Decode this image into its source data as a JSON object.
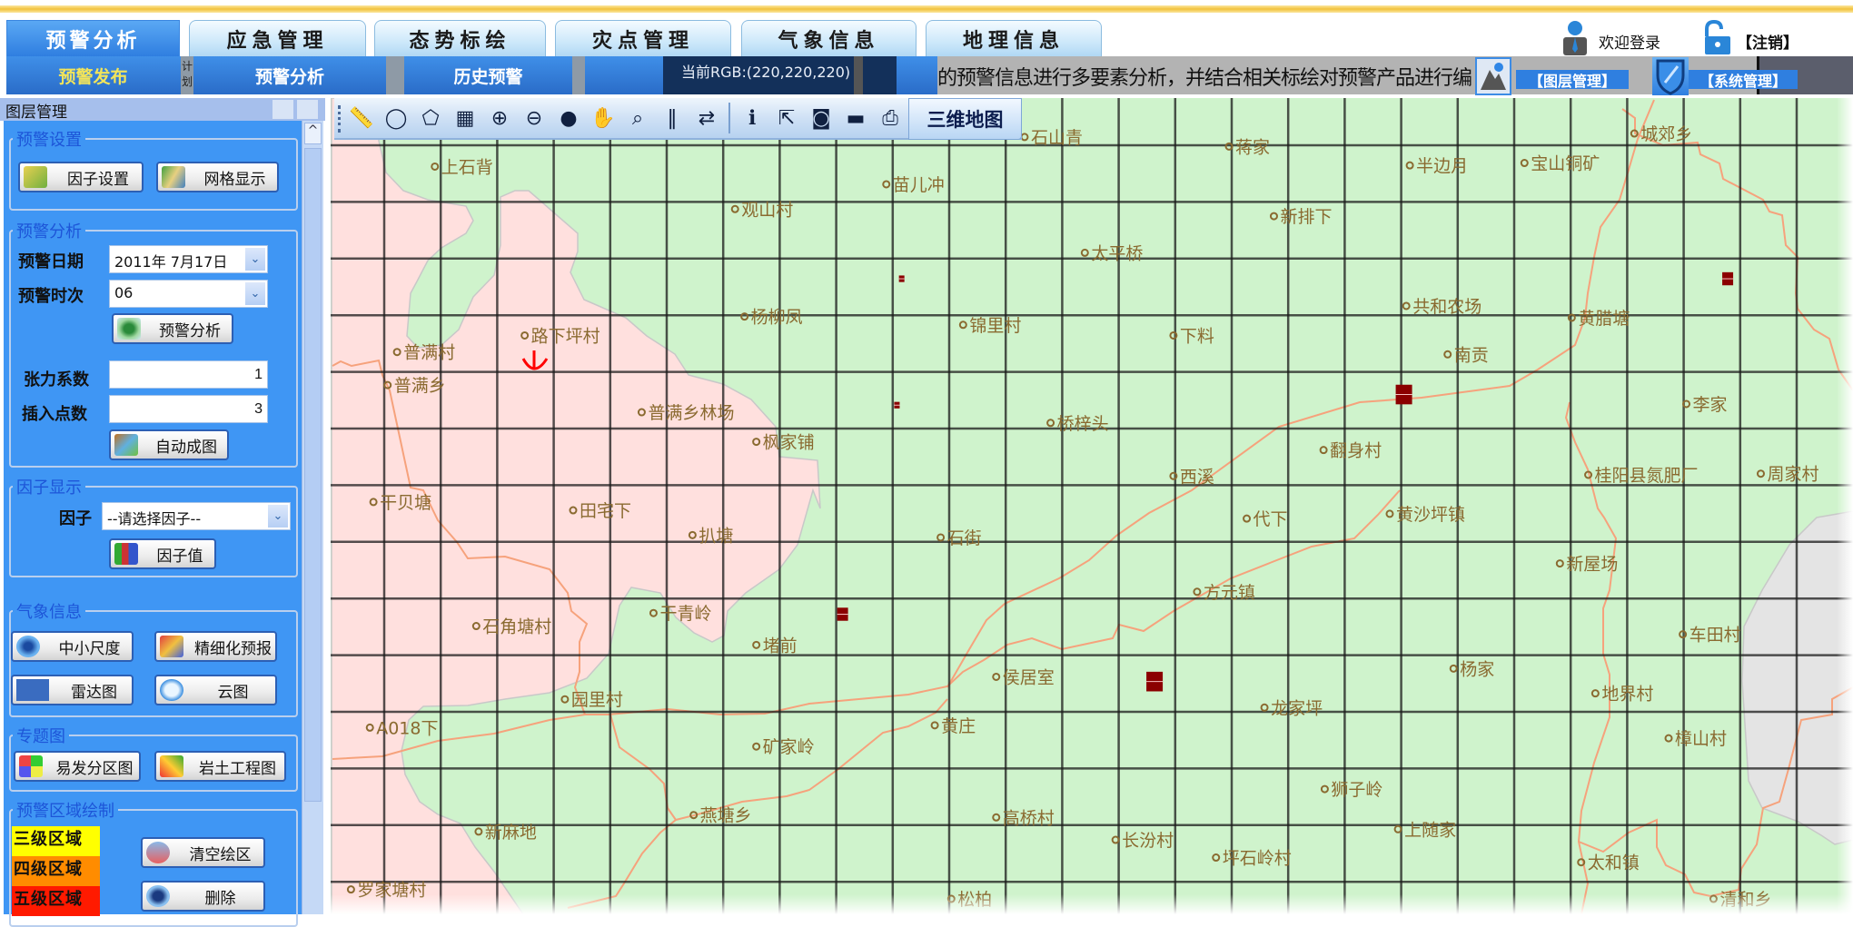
{
  "header": {
    "main_tabs": [
      "预警分析",
      "应急管理",
      "态势标绘",
      "灾点管理",
      "气象信息",
      "地理信息"
    ],
    "active_tab": 0,
    "sub_tabs": {
      "publish": "预警发布",
      "plan": "计划",
      "analysis": "预警分析",
      "history": "历史预警"
    },
    "rgb_readout": "当前RGB:(220,220,220)",
    "marquee": "的预警信息进行多要素分析，并结合相关标绘对预警产品进行编",
    "layer_mgmt": "【图层管理】",
    "sys_mgmt": "【系统管理】",
    "welcome": "欢迎登录",
    "logout": "【注销】"
  },
  "sidebar": {
    "title": "图层管理",
    "settings": {
      "legend": "预警设置",
      "factor_settings": "因子设置",
      "grid_display": "网格显示"
    },
    "analysis": {
      "legend": "预警分析",
      "date_label": "预警日期",
      "date_value": "2011年 7月17日",
      "time_label": "预警时次",
      "time_value": "06",
      "run_button": "预警分析",
      "tension_label": "张力系数",
      "tension_value": "1",
      "interp_label": "插入点数",
      "interp_value": "3",
      "auto_map": "自动成图"
    },
    "factor": {
      "legend": "因子显示",
      "label": "因子",
      "select_value": "--请选择因子--",
      "value_button": "因子值"
    },
    "weather": {
      "legend": "气象信息",
      "mesoscale": "中小尺度",
      "fine_forecast": "精细化预报",
      "radar": "雷达图",
      "cloud": "云图"
    },
    "thematic": {
      "legend": "专题图",
      "susceptibility": "易发分区图",
      "geotech": "岩土工程图"
    },
    "drawing": {
      "legend": "预警区域绘制",
      "levels": [
        {
          "label": "三级区域",
          "color": "#ffff00"
        },
        {
          "label": "四级区域",
          "color": "#ff8c00"
        },
        {
          "label": "五级区域",
          "color": "#ff1a00"
        }
      ],
      "clear": "清空绘区",
      "delete": "删除"
    }
  },
  "toolbar": {
    "icons": [
      "ruler-icon",
      "measure-area-icon",
      "measure-polygon-icon",
      "grid-icon",
      "zoom-in-icon",
      "zoom-out-icon",
      "globe-icon",
      "pan-hand-icon",
      "zoom-extent-icon",
      "pause-icon",
      "swap-icon",
      "info-icon",
      "export-icon",
      "snapshot-icon",
      "print-preview-icon",
      "printer-icon"
    ],
    "map3d": "三维地图"
  },
  "map": {
    "colors": {
      "base": "#cff3cc",
      "warning_zone": "#ffe0de",
      "gray_zone": "#e4e4e4",
      "road": "#f6a27c",
      "label": "#8a6a30",
      "grid": "#1a1a1a",
      "marker": "#8b0000"
    },
    "places": [
      "上石背",
      "石山青",
      "蒋家",
      "城郊乡",
      "苗儿冲",
      "半边月",
      "宝山铜矿",
      "观山村",
      "新排下",
      "太平桥",
      "杨柳凤",
      "锦里村",
      "下料",
      "共和农场",
      "黄腊塘",
      "路下坪村",
      "普满村",
      "南贡",
      "普满乡",
      "普满乡林场",
      "李家",
      "桥梓头",
      "枫家铺",
      "翻身村",
      "西溪",
      "桂阳县氮肥厂",
      "周家村",
      "干贝塘",
      "田宅下",
      "代下",
      "黄沙坪镇",
      "扒塘",
      "石街",
      "新屋场",
      "方元镇",
      "干青岭",
      "石角塘村",
      "车田村",
      "堵前",
      "杨家",
      "侯居室",
      "地界村",
      "园里村",
      "龙家坪",
      "A018下",
      "黄庄",
      "矿家岭",
      "樟山村",
      "狮子岭",
      "燕塘乡",
      "高桥村",
      "上随家",
      "新麻地",
      "长汾村",
      "坪石岭村",
      "太和镇",
      "罗家塘村",
      "松柏",
      "清和乡"
    ]
  }
}
